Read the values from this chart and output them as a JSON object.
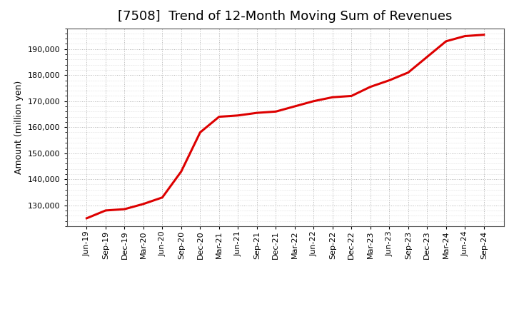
{
  "title": "[7508]  Trend of 12-Month Moving Sum of Revenues",
  "ylabel": "Amount (million yen)",
  "background_color": "#ffffff",
  "plot_bg_color": "#ffffff",
  "line_color": "#dd0000",
  "line_width": 2.2,
  "grid_color": "#aaaaaa",
  "grid_linestyle": ":",
  "tick_labels": [
    "Jun-19",
    "Sep-19",
    "Dec-19",
    "Mar-20",
    "Jun-20",
    "Sep-20",
    "Dec-20",
    "Mar-21",
    "Jun-21",
    "Sep-21",
    "Dec-21",
    "Mar-22",
    "Jun-22",
    "Sep-22",
    "Dec-22",
    "Mar-23",
    "Jun-23",
    "Sep-23",
    "Dec-23",
    "Mar-24",
    "Jun-24",
    "Sep-24"
  ],
  "values": [
    125000,
    128000,
    128500,
    130500,
    133000,
    143000,
    158000,
    164000,
    164500,
    165500,
    166000,
    168000,
    170000,
    171500,
    172000,
    175500,
    178000,
    181000,
    187000,
    193000,
    195000,
    195500
  ],
  "ylim_min": 122000,
  "ylim_max": 198000,
  "yticks": [
    130000,
    140000,
    150000,
    160000,
    170000,
    180000,
    190000
  ],
  "title_fontsize": 13,
  "title_fontweight": "normal",
  "axis_label_fontsize": 9,
  "tick_fontsize": 8
}
